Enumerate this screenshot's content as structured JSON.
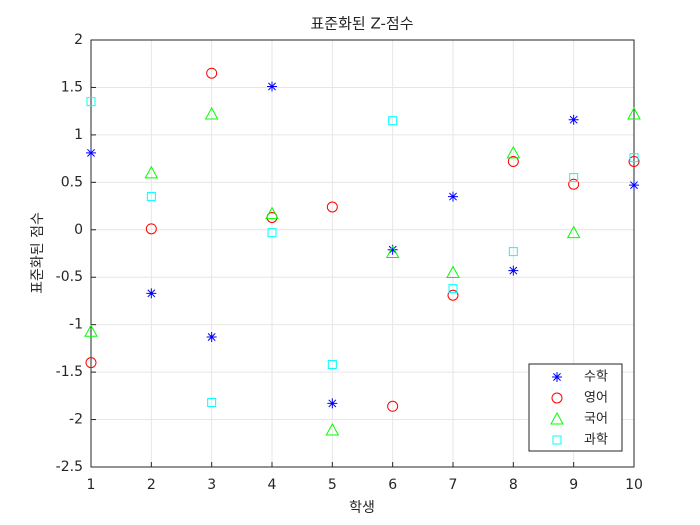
{
  "chart_data": {
    "type": "scatter",
    "title": "표준화된 Z-점수",
    "xlabel": "학생",
    "ylabel": "표준화된 점수",
    "x": [
      1,
      2,
      3,
      4,
      5,
      6,
      7,
      8,
      9,
      10
    ],
    "series": [
      {
        "name": "수학",
        "color": "#0000ff",
        "marker": "*",
        "values": [
          0.81,
          -0.67,
          -1.13,
          1.51,
          -1.83,
          -0.21,
          0.35,
          -0.43,
          1.16,
          0.47
        ]
      },
      {
        "name": "영어",
        "color": "#ff0000",
        "marker": "o",
        "values": [
          -1.4,
          0.01,
          1.65,
          0.13,
          0.24,
          -1.86,
          -0.69,
          0.72,
          0.48,
          0.72
        ]
      },
      {
        "name": "국어",
        "color": "#00ff00",
        "marker": "^",
        "values": [
          -1.07,
          0.6,
          1.22,
          0.17,
          -2.11,
          -0.24,
          -0.45,
          0.81,
          -0.03,
          1.22
        ]
      },
      {
        "name": "과학",
        "color": "#00ffff",
        "marker": "s",
        "values": [
          1.35,
          0.35,
          -1.82,
          -0.03,
          -1.42,
          1.15,
          -0.62,
          -0.23,
          0.55,
          0.76
        ]
      }
    ],
    "xlim": [
      1,
      10
    ],
    "xticks": [
      1,
      2,
      3,
      4,
      5,
      6,
      7,
      8,
      9,
      10
    ],
    "ylim": [
      -2.5,
      2
    ],
    "yticks": [
      -2.5,
      -2,
      -1.5,
      -1,
      -0.5,
      0,
      0.5,
      1,
      1.5,
      2
    ],
    "grid": true,
    "legend": "southeast"
  }
}
